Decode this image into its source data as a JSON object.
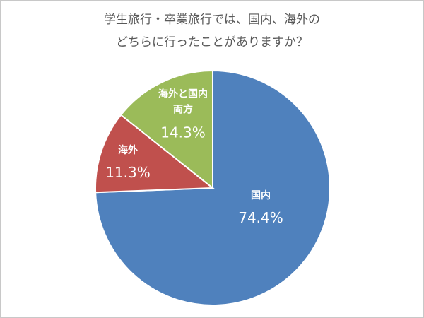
{
  "chart_data": {
    "type": "pie",
    "title": [
      "学生旅行・卒業旅行では、国内、海外の",
      "どちらに行ったことがありますか？"
    ],
    "categories": [
      "国内",
      "海外",
      "海外と国内両方"
    ],
    "values": [
      74.4,
      11.3,
      14.3
    ],
    "value_labels": [
      "74.4%",
      "11.3%",
      "14.3%"
    ],
    "colors": [
      "#4f81bd",
      "#c0504d",
      "#9bbb59"
    ]
  }
}
